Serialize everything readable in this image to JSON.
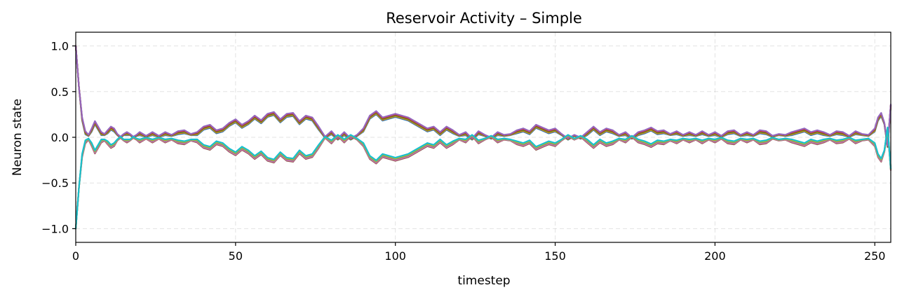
{
  "chart_data": {
    "type": "line",
    "title": "Reservoir Activity – Simple",
    "xlabel": "timestep",
    "ylabel": "Neuron state",
    "xlim": [
      0,
      255
    ],
    "ylim": [
      -1.15,
      1.15
    ],
    "xticks": [
      0,
      50,
      100,
      150,
      200,
      250
    ],
    "yticks": [
      -1.0,
      -0.5,
      0.0,
      0.5,
      1.0
    ],
    "ytick_labels": [
      "−1.0",
      "−0.5",
      "0.0",
      "0.5",
      "1.0"
    ],
    "grid": true,
    "legend": "none",
    "envelope": {
      "x": [
        0,
        1,
        2,
        3,
        4,
        5,
        6,
        7,
        8,
        9,
        10,
        11,
        12,
        13,
        14,
        15,
        16,
        17,
        18,
        19,
        20,
        22,
        24,
        26,
        28,
        30,
        32,
        34,
        36,
        38,
        40,
        42,
        44,
        46,
        48,
        50,
        52,
        54,
        56,
        58,
        60,
        62,
        64,
        66,
        68,
        70,
        72,
        74,
        76,
        78,
        80,
        82,
        84,
        86,
        88,
        90,
        92,
        94,
        96,
        98,
        100,
        102,
        104,
        106,
        108,
        110,
        112,
        114,
        116,
        118,
        120,
        122,
        124,
        126,
        128,
        130,
        132,
        134,
        136,
        138,
        140,
        142,
        144,
        146,
        148,
        150,
        152,
        154,
        156,
        158,
        160,
        162,
        164,
        166,
        168,
        170,
        172,
        174,
        176,
        178,
        180,
        182,
        184,
        186,
        188,
        190,
        192,
        194,
        196,
        198,
        200,
        202,
        204,
        206,
        208,
        210,
        212,
        214,
        216,
        218,
        220,
        222,
        224,
        226,
        228,
        230,
        232,
        234,
        236,
        238,
        240,
        242,
        244,
        246,
        248,
        250,
        251,
        252,
        253,
        254,
        255
      ],
      "y": [
        1.0,
        0.55,
        0.2,
        0.05,
        0.02,
        0.08,
        0.16,
        0.1,
        0.04,
        0.03,
        0.06,
        0.1,
        0.08,
        0.03,
        0.0,
        0.03,
        0.04,
        0.03,
        0.0,
        0.02,
        0.04,
        0.01,
        0.04,
        0.01,
        0.04,
        0.02,
        0.05,
        0.06,
        0.03,
        0.04,
        0.1,
        0.12,
        0.06,
        0.08,
        0.14,
        0.18,
        0.12,
        0.16,
        0.22,
        0.17,
        0.24,
        0.26,
        0.18,
        0.24,
        0.25,
        0.16,
        0.22,
        0.2,
        0.1,
        0.0,
        0.05,
        -0.02,
        0.04,
        -0.02,
        0.02,
        0.08,
        0.22,
        0.27,
        0.2,
        0.22,
        0.24,
        0.22,
        0.2,
        0.16,
        0.12,
        0.08,
        0.1,
        0.04,
        0.1,
        0.06,
        0.02,
        0.04,
        -0.02,
        0.05,
        0.02,
        -0.01,
        0.04,
        0.02,
        0.03,
        0.06,
        0.08,
        0.05,
        0.12,
        0.09,
        0.06,
        0.08,
        0.03,
        -0.02,
        0.02,
        -0.01,
        0.04,
        0.1,
        0.04,
        0.08,
        0.06,
        0.02,
        0.04,
        -0.01,
        0.04,
        0.06,
        0.09,
        0.05,
        0.06,
        0.03,
        0.05,
        0.02,
        0.04,
        0.02,
        0.05,
        0.02,
        0.04,
        0.01,
        0.05,
        0.06,
        0.02,
        0.04,
        0.02,
        0.06,
        0.05,
        0.01,
        0.03,
        0.02,
        0.04,
        0.06,
        0.08,
        0.04,
        0.06,
        0.04,
        0.02,
        0.05,
        0.04,
        0.01,
        0.05,
        0.03,
        0.02,
        0.08,
        0.2,
        0.25,
        0.15,
        -0.1,
        0.35
      ],
      "lines_per_branch": 5,
      "spread": 0.035
    },
    "series_colors": [
      "#1f77b4",
      "#ff7f0e",
      "#2ca02c",
      "#d62728",
      "#9467bd",
      "#8c564b",
      "#e377c2",
      "#7f7f7f",
      "#bcbd22",
      "#17becf"
    ]
  }
}
